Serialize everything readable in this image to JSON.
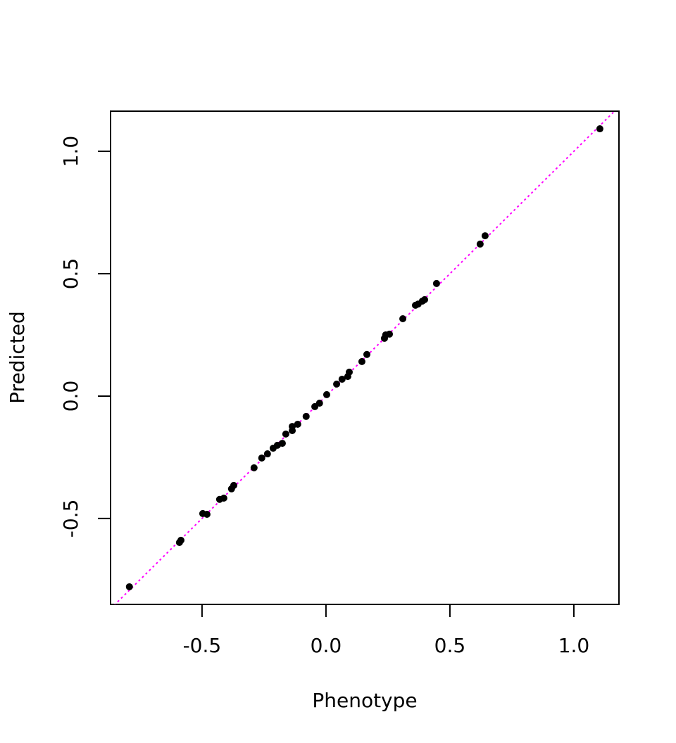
{
  "chart_data": {
    "type": "scatter",
    "x_label": "Phenotype",
    "y_label": "Predicted",
    "x": [
      -0.793,
      -0.591,
      -0.585,
      -0.497,
      -0.48,
      -0.429,
      -0.412,
      -0.381,
      -0.372,
      -0.29,
      -0.259,
      -0.236,
      -0.213,
      -0.196,
      -0.176,
      -0.162,
      -0.136,
      -0.136,
      -0.114,
      -0.08,
      -0.045,
      -0.026,
      0.003,
      0.043,
      0.065,
      0.088,
      0.094,
      0.145,
      0.165,
      0.236,
      0.241,
      0.256,
      0.31,
      0.361,
      0.372,
      0.389,
      0.398,
      0.446,
      0.622,
      0.642,
      1.105
    ],
    "values": [
      -0.779,
      -0.598,
      -0.589,
      -0.48,
      -0.483,
      -0.422,
      -0.417,
      -0.379,
      -0.365,
      -0.293,
      -0.253,
      -0.236,
      -0.213,
      -0.201,
      -0.193,
      -0.155,
      -0.124,
      -0.141,
      -0.115,
      -0.083,
      -0.043,
      -0.029,
      0.006,
      0.049,
      0.069,
      0.08,
      0.098,
      0.141,
      0.17,
      0.236,
      0.25,
      0.253,
      0.316,
      0.371,
      0.376,
      0.388,
      0.394,
      0.46,
      0.621,
      0.655,
      1.092
    ],
    "color": "#000000",
    "xlim": [
      -0.869,
      1.182
    ],
    "ylim": [
      -0.851,
      1.164
    ],
    "xticks": [
      -0.5,
      {
        "value": 0,
        "label": "0.0"
      },
      0.5,
      {
        "value": 1,
        "label": "1.0"
      }
    ],
    "yticks": [
      -0.5,
      {
        "value": 0,
        "label": "0.0"
      },
      0.5,
      {
        "value": 1,
        "label": "1.0"
      }
    ],
    "reference_line": {
      "intercept": 0,
      "slope": 1,
      "color": "#ff00ff"
    }
  }
}
